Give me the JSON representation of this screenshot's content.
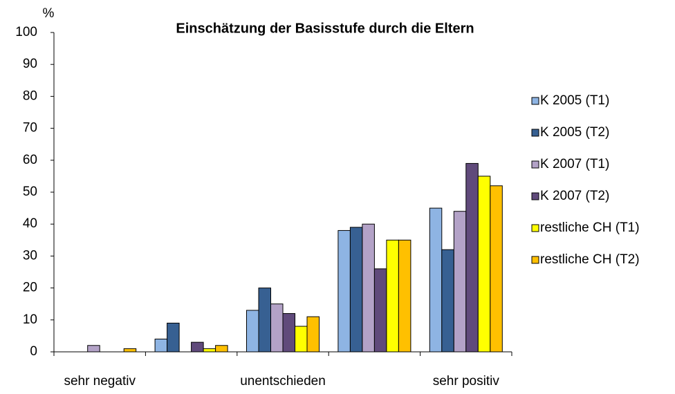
{
  "chart_data": {
    "type": "bar",
    "title": "Einschätzung der Basisstufe durch die Eltern",
    "y_label": "%",
    "categories": [
      "sehr negativ",
      null,
      "unentschieden",
      null,
      "sehr positiv"
    ],
    "series": [
      {
        "name": "K 2005 (T1)",
        "color": "#8eb4e3",
        "values": [
          0,
          4,
          13,
          38,
          45
        ]
      },
      {
        "name": "K 2005 (T2)",
        "color": "#376092",
        "values": [
          0,
          9,
          20,
          39,
          32
        ]
      },
      {
        "name": "K 2007 (T1)",
        "color": "#b3a2c7",
        "values": [
          2,
          0,
          15,
          40,
          44
        ]
      },
      {
        "name": "K 2007 (T2)",
        "color": "#604a7b",
        "values": [
          0,
          3,
          12,
          26,
          59
        ]
      },
      {
        "name": "restliche CH (T1)",
        "color": "#ffff00",
        "values": [
          0,
          1,
          8,
          35,
          55
        ]
      },
      {
        "name": "restliche CH (T2)",
        "color": "#ffc000",
        "values": [
          1,
          2,
          11,
          35,
          52
        ]
      }
    ],
    "ylim": [
      0,
      100
    ],
    "yticks": [
      0,
      10,
      20,
      30,
      40,
      50,
      60,
      70,
      80,
      90,
      100
    ],
    "legend": "right"
  }
}
